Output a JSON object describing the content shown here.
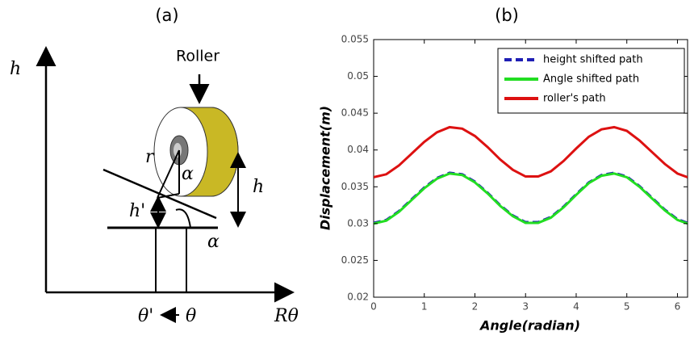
{
  "panel_a": {
    "label": "(a)",
    "roller": "Roller",
    "axis_h": "h",
    "r": "r",
    "alpha_top": "α",
    "h_prime": "h'",
    "h_right": "h",
    "alpha_bottom": "α",
    "theta_prime": "θ'",
    "theta": "θ",
    "r_theta": "Rθ"
  },
  "chart_data": {
    "type": "line",
    "title": "(b)",
    "xlabel": "Angle(radian)",
    "ylabel": "Displacement(m)",
    "x": [
      0,
      0.25,
      0.5,
      0.75,
      1,
      1.25,
      1.5,
      1.75,
      2,
      2.25,
      2.5,
      2.75,
      3,
      3.25,
      3.5,
      3.75,
      4,
      4.25,
      4.5,
      4.75,
      5,
      5.25,
      5.5,
      5.75,
      6,
      6.2
    ],
    "series": [
      {
        "name": "height shifted path",
        "color": "#1f1fb4",
        "linestyle": "dashed",
        "values": [
          0.0301,
          0.0305,
          0.0317,
          0.0333,
          0.0349,
          0.0362,
          0.0369,
          0.0367,
          0.0357,
          0.0342,
          0.0325,
          0.0311,
          0.0302,
          0.0302,
          0.0309,
          0.0323,
          0.034,
          0.0356,
          0.0366,
          0.0369,
          0.0364,
          0.0351,
          0.0335,
          0.0319,
          0.0306,
          0.0301
        ]
      },
      {
        "name": "Angle shifted path",
        "color": "#22dd22",
        "linestyle": "solid",
        "values": [
          0.03,
          0.0304,
          0.0316,
          0.0332,
          0.0348,
          0.0361,
          0.0368,
          0.0366,
          0.0356,
          0.0341,
          0.0324,
          0.031,
          0.0301,
          0.0301,
          0.0308,
          0.0322,
          0.0339,
          0.0355,
          0.0365,
          0.0368,
          0.0363,
          0.035,
          0.0334,
          0.0318,
          0.0305,
          0.03
        ]
      },
      {
        "name": "roller's path",
        "color": "#dd1111",
        "linestyle": "solid",
        "values": [
          0.0363,
          0.0367,
          0.0379,
          0.0395,
          0.0411,
          0.0424,
          0.0431,
          0.0429,
          0.0419,
          0.0404,
          0.0387,
          0.0373,
          0.0364,
          0.0364,
          0.0371,
          0.0385,
          0.0402,
          0.0418,
          0.0428,
          0.0431,
          0.0426,
          0.0413,
          0.0397,
          0.0381,
          0.0368,
          0.0363
        ]
      }
    ],
    "xlim": [
      0,
      6.2
    ],
    "xticks": [
      0,
      1,
      2,
      3,
      4,
      5,
      6
    ],
    "ylim": [
      0.02,
      0.055
    ],
    "yticks": [
      0.02,
      0.025,
      0.03,
      0.035,
      0.04,
      0.045,
      0.05,
      0.055
    ],
    "grid": false,
    "legend": "upper right"
  }
}
